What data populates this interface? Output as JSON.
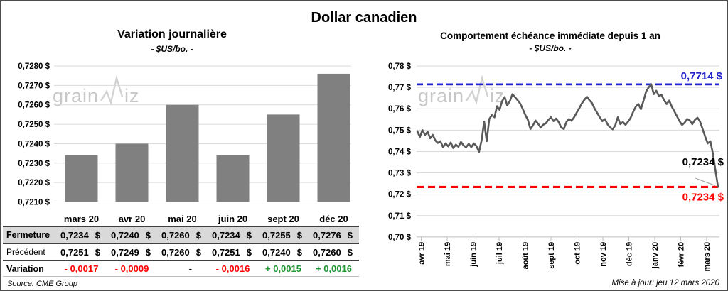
{
  "window": {
    "title": "Dollar canadien"
  },
  "left_chart": {
    "title": "Variation journalière",
    "subtitle": "- $US/bo. -",
    "source": "Source: CME Group"
  },
  "right_chart": {
    "title": "Comportement échéance immédiate depuis 1 an",
    "subtitle": "- $US/bo. -",
    "updated": "Mise à jour: jeu 12 mars 2020"
  },
  "watermark": {
    "part1": "grain",
    "part2": "iz"
  },
  "colors": {
    "negative": "#ff0000",
    "positive": "#1e9632",
    "neutral": "#000000",
    "bar": "#808080",
    "line": "#595959",
    "grid": "#d9d9d9",
    "axis": "#bfbfbf",
    "high_ref": "#2222cc",
    "low_ref": "#ff0000",
    "leader": "#a6a6a6",
    "shaded_row": "#d9d9d9"
  },
  "table": {
    "columns": [
      "mars 20",
      "avr 20",
      "mai 20",
      "juin 20",
      "sept 20",
      "déc 20"
    ],
    "rows": [
      {
        "label": "Fermeture",
        "kind": "shaded",
        "cells": [
          [
            "0,7234",
            "$"
          ],
          [
            "0,7240",
            "$"
          ],
          [
            "0,7260",
            "$"
          ],
          [
            "0,7234",
            "$"
          ],
          [
            "0,7255",
            "$"
          ],
          [
            "0,7276",
            "$"
          ]
        ]
      },
      {
        "label": "Précédent",
        "kind": "plain",
        "cells": [
          [
            "0,7251",
            "$"
          ],
          [
            "0,7249",
            "$"
          ],
          [
            "0,7260",
            "$"
          ],
          [
            "0,7251",
            "$"
          ],
          [
            "0,7240",
            "$"
          ],
          [
            "0,7260",
            "$"
          ]
        ]
      },
      {
        "label": "Variation",
        "kind": "variation",
        "cells": [
          {
            "text": "- 0,0017",
            "tone": "negative"
          },
          {
            "text": "- 0,0009",
            "tone": "negative"
          },
          {
            "text": "-",
            "tone": "neutral"
          },
          {
            "text": "- 0,0016",
            "tone": "negative"
          },
          {
            "text": "+ 0,0015",
            "tone": "positive"
          },
          {
            "text": "+ 0,0016",
            "tone": "positive"
          }
        ]
      }
    ]
  },
  "chart_data": [
    {
      "type": "bar",
      "title": "Variation journalière",
      "subtitle": "- $US/bo. -",
      "categories": [
        "mars 20",
        "avr 20",
        "mai 20",
        "juin 20",
        "sept 20",
        "déc 20"
      ],
      "values": [
        0.7234,
        0.724,
        0.726,
        0.7234,
        0.7255,
        0.7276
      ],
      "ylabel": "$US/bo.",
      "ylim": [
        0.721,
        0.728
      ],
      "ytick_labels": [
        "0,7280 $",
        "0,7270 $",
        "0,7260 $",
        "0,7250 $",
        "0,7240 $",
        "0,7230 $",
        "0,7220 $",
        "0,7210 $"
      ],
      "grid": true,
      "legend": "none"
    },
    {
      "type": "line",
      "title": "Comportement échéance immédiate depuis 1 an",
      "subtitle": "- $US/bo. -",
      "x_tick_labels": [
        "avr 19",
        "mai 19",
        "juin 19",
        "juil 19",
        "août 19",
        "sept 19",
        "oct 19",
        "nov 19",
        "déc 19",
        "janv 20",
        "févr 20",
        "mars 20"
      ],
      "ylim": [
        0.7,
        0.78
      ],
      "ytick_labels": [
        "0,78 $",
        "0,77 $",
        "0,76 $",
        "0,75 $",
        "0,74 $",
        "0,73 $",
        "0,72 $",
        "0,71 $",
        "0,70 $"
      ],
      "grid": true,
      "legend": "none",
      "values": [
        0.7495,
        0.7468,
        0.75,
        0.7478,
        0.7492,
        0.7462,
        0.7478,
        0.7452,
        0.744,
        0.7448,
        0.742,
        0.7438,
        0.7424,
        0.7442,
        0.7416,
        0.7432,
        0.7422,
        0.7445,
        0.7428,
        0.742,
        0.7436,
        0.742,
        0.7438,
        0.7425,
        0.7398,
        0.7452,
        0.754,
        0.7448,
        0.7552,
        0.757,
        0.756,
        0.7612,
        0.7595,
        0.7636,
        0.7655,
        0.7615,
        0.7636,
        0.7668,
        0.7655,
        0.764,
        0.7625,
        0.76,
        0.7572,
        0.7548,
        0.7505,
        0.7522,
        0.7545,
        0.753,
        0.7512,
        0.7525,
        0.7532,
        0.7548,
        0.756,
        0.7542,
        0.7554,
        0.7538,
        0.7512,
        0.7505,
        0.7538,
        0.7552,
        0.7544,
        0.756,
        0.7582,
        0.7602,
        0.7625,
        0.7642,
        0.7656,
        0.764,
        0.7626,
        0.76,
        0.758,
        0.756,
        0.7542,
        0.7552,
        0.7528,
        0.7512,
        0.7504,
        0.7522,
        0.756,
        0.7528,
        0.7538,
        0.7525,
        0.754,
        0.7558,
        0.7586,
        0.761,
        0.7622,
        0.7598,
        0.7638,
        0.768,
        0.77,
        0.7714,
        0.7668,
        0.7684,
        0.766,
        0.7665,
        0.764,
        0.7622,
        0.7638,
        0.761,
        0.7588,
        0.7565,
        0.7542,
        0.7524,
        0.7535,
        0.7552,
        0.7545,
        0.7528,
        0.7548,
        0.7558,
        0.754,
        0.7505,
        0.747,
        0.7438,
        0.7448,
        0.739,
        0.731,
        0.7234
      ],
      "ref_lines": [
        {
          "value": 0.7714,
          "label": "0,7714 $",
          "color": "#2222cc",
          "style": "dashed",
          "position": "top-right"
        },
        {
          "value": 0.7234,
          "label": "0,7234 $",
          "color": "#ff0000",
          "style": "dashed",
          "position": "bottom-right"
        }
      ],
      "annotations": [
        {
          "text": "0,7234 $",
          "color": "#000000",
          "points_to": "last-value"
        }
      ]
    }
  ]
}
